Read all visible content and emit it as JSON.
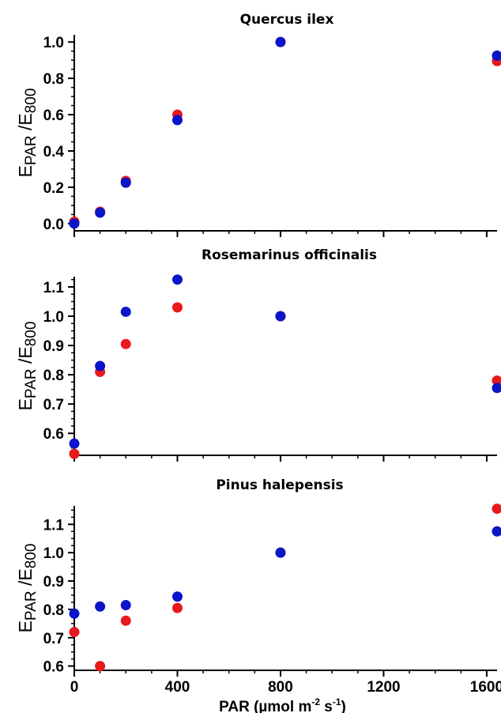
{
  "chart_data": [
    {
      "type": "scatter",
      "title": "Quercus ilex",
      "ylabel_main": "E",
      "ylabel_sub1": "PAR",
      "ylabel_mid": " /E",
      "ylabel_sub2": "800",
      "xlim": [
        0,
        1640
      ],
      "ylim": [
        -0.04,
        1.04
      ],
      "yticks": [
        "0.0",
        "0.2",
        "0.4",
        "0.6",
        "0.8",
        "1.0"
      ],
      "ytick_values": [
        0.0,
        0.2,
        0.4,
        0.6,
        0.8,
        1.0
      ],
      "show_x_tick_labels": false,
      "series": [
        {
          "color": "#e8191b",
          "x": [
            0,
            100,
            200,
            400,
            800,
            1640
          ],
          "y": [
            0.01,
            0.065,
            0.235,
            0.6,
            1.0,
            0.895
          ]
        },
        {
          "color": "#0a14c8",
          "x": [
            0,
            100,
            200,
            400,
            800,
            1640
          ],
          "y": [
            0.0,
            0.06,
            0.225,
            0.57,
            1.0,
            0.925
          ]
        }
      ]
    },
    {
      "type": "scatter",
      "title": "Rosemarinus officinalis",
      "ylabel_main": "E",
      "ylabel_sub1": "PAR",
      "ylabel_mid": " /E",
      "ylabel_sub2": "800",
      "xlim": [
        0,
        1640
      ],
      "ylim": [
        0.525,
        1.135
      ],
      "yticks": [
        "0.6",
        "0.7",
        "0.8",
        "0.9",
        "1.0",
        "1.1"
      ],
      "ytick_values": [
        0.6,
        0.7,
        0.8,
        0.9,
        1.0,
        1.1
      ],
      "show_x_tick_labels": false,
      "series": [
        {
          "color": "#e8191b",
          "x": [
            0,
            100,
            200,
            400,
            800,
            1640
          ],
          "y": [
            0.53,
            0.81,
            0.905,
            1.03,
            1.0,
            0.78
          ]
        },
        {
          "color": "#0a14c8",
          "x": [
            0,
            100,
            200,
            400,
            800,
            1640
          ],
          "y": [
            0.565,
            0.83,
            1.015,
            1.125,
            1.0,
            0.755
          ]
        }
      ]
    },
    {
      "type": "scatter",
      "title": "Pinus halepensis",
      "ylabel_main": "E",
      "ylabel_sub1": "PAR",
      "ylabel_mid": " /E",
      "ylabel_sub2": "800",
      "xlim": [
        0,
        1640
      ],
      "ylim": [
        0.585,
        1.165
      ],
      "yticks": [
        "0.6",
        "0.7",
        "0.8",
        "0.9",
        "1.0",
        "1.1"
      ],
      "ytick_values": [
        0.6,
        0.7,
        0.8,
        0.9,
        1.0,
        1.1
      ],
      "show_x_tick_labels": true,
      "xticks": [
        "0",
        "400",
        "800",
        "1200",
        "1600"
      ],
      "xtick_values": [
        0,
        400,
        800,
        1200,
        1600
      ],
      "xlabel_pre": "PAR (µmol m",
      "xlabel_sup1": "-2",
      "xlabel_mid": " s",
      "xlabel_sup2": "-1",
      "xlabel_post": ")",
      "series": [
        {
          "color": "#e8191b",
          "x": [
            0,
            100,
            200,
            400,
            800,
            1640
          ],
          "y": [
            0.72,
            0.6,
            0.76,
            0.805,
            1.0,
            1.155
          ]
        },
        {
          "color": "#0a14c8",
          "x": [
            0,
            100,
            200,
            400,
            800,
            1640
          ],
          "y": [
            0.785,
            0.81,
            0.815,
            0.845,
            1.0,
            1.075
          ]
        }
      ]
    }
  ]
}
